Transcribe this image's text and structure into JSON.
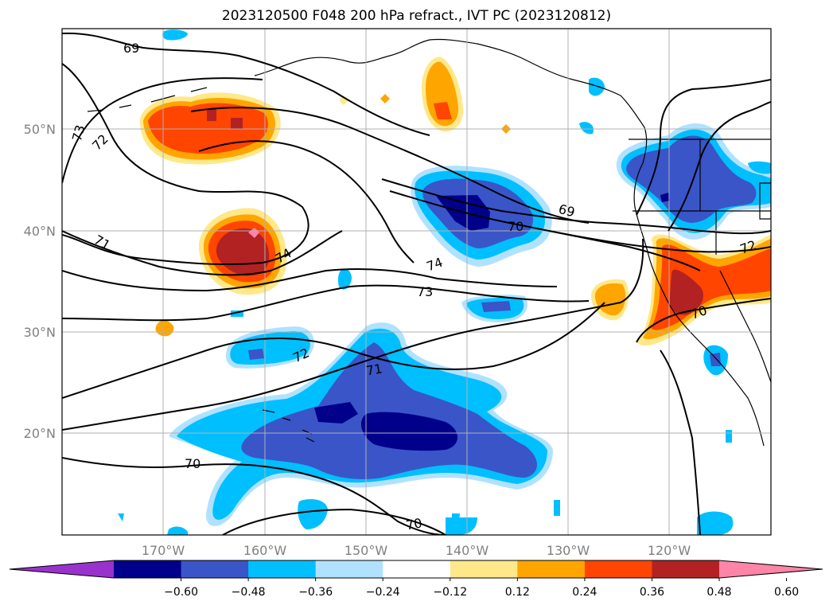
{
  "title": "2023120500 F048 200 hPa refract., IVT PC (2023120812)",
  "map": {
    "lat_labels": [
      "50°N",
      "40°N",
      "30°N",
      "20°N"
    ],
    "lon_labels": [
      "170°W",
      "160°W",
      "150°W",
      "140°W",
      "130°W",
      "120°W"
    ],
    "grid": true
  },
  "contours": {
    "labels": [
      "69",
      "73",
      "72",
      "71",
      "74",
      "69",
      "70",
      "74",
      "73",
      "72",
      "71",
      "70",
      "70",
      "70",
      "72"
    ]
  },
  "colorbar": {
    "ticks": [
      "−0.60",
      "−0.48",
      "−0.36",
      "−0.24",
      "−0.12",
      "0.12",
      "0.24",
      "0.36",
      "0.48",
      "0.60"
    ],
    "colors": [
      "#9932cc",
      "#00008b",
      "#3a55c8",
      "#00bfff",
      "#b0e2ff",
      "#ffffff",
      "#ffe88a",
      "#ffa500",
      "#ff4500",
      "#b22222",
      "#ff85a8"
    ]
  },
  "fill_colors": {
    "dark_blue": "#00008b",
    "blue": "#3a55c8",
    "cyan": "#00bfff",
    "light_blue": "#b0e2ff",
    "light_yellow": "#ffe88a",
    "orange": "#ffa500",
    "red_orange": "#ff4500",
    "dark_red": "#b22222",
    "pink": "#ff85a8"
  }
}
